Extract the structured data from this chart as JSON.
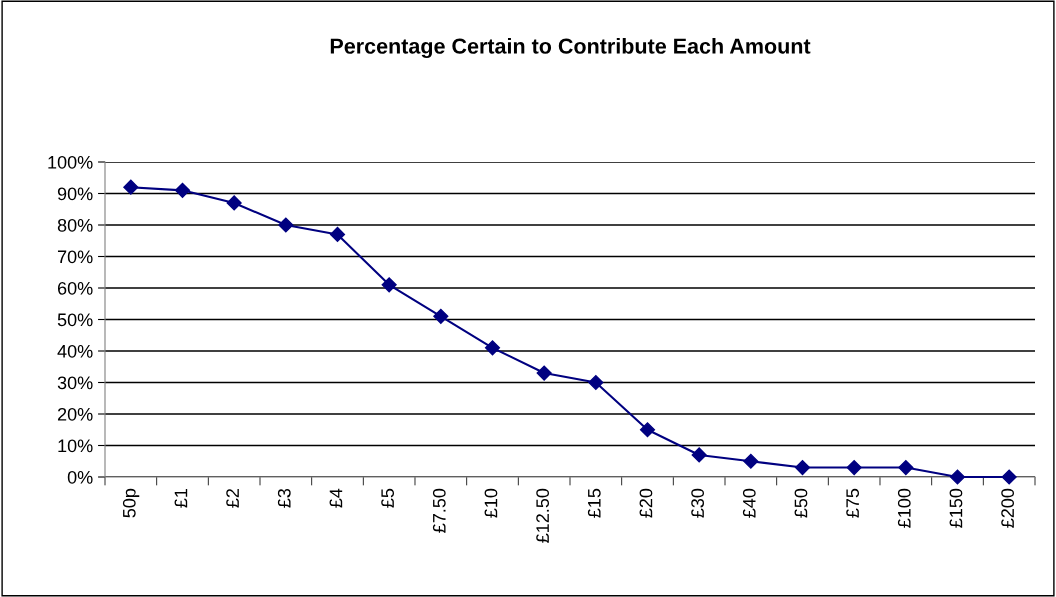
{
  "chart_data": {
    "type": "line",
    "title": "Percentage Certain to Contribute Each Amount",
    "categories": [
      "50p",
      "£1",
      "£2",
      "£3",
      "£4",
      "£5",
      "£7.50",
      "£10",
      "£12.50",
      "£15",
      "£20",
      "£30",
      "£40",
      "£50",
      "£75",
      "£100",
      "£150",
      "£200"
    ],
    "series": [
      {
        "color": "#000080",
        "values": [
          92,
          91,
          87,
          80,
          77,
          61,
          51,
          41,
          33,
          30,
          15,
          7,
          5,
          3,
          3,
          3,
          0,
          0
        ]
      }
    ],
    "ylim": [
      0,
      100
    ],
    "yticks": [
      {
        "value": 0,
        "label": "0%"
      },
      {
        "value": 10,
        "label": "10%"
      },
      {
        "value": 20,
        "label": "20%"
      },
      {
        "value": 30,
        "label": "30%"
      },
      {
        "value": 40,
        "label": "40%"
      },
      {
        "value": 50,
        "label": "50%"
      },
      {
        "value": 60,
        "label": "60%"
      },
      {
        "value": 70,
        "label": "70%"
      },
      {
        "value": 80,
        "label": "80%"
      },
      {
        "value": 90,
        "label": "90%"
      },
      {
        "value": 100,
        "label": "100%"
      }
    ],
    "grid": "y",
    "marker": "diamond",
    "line_style": "solid"
  }
}
